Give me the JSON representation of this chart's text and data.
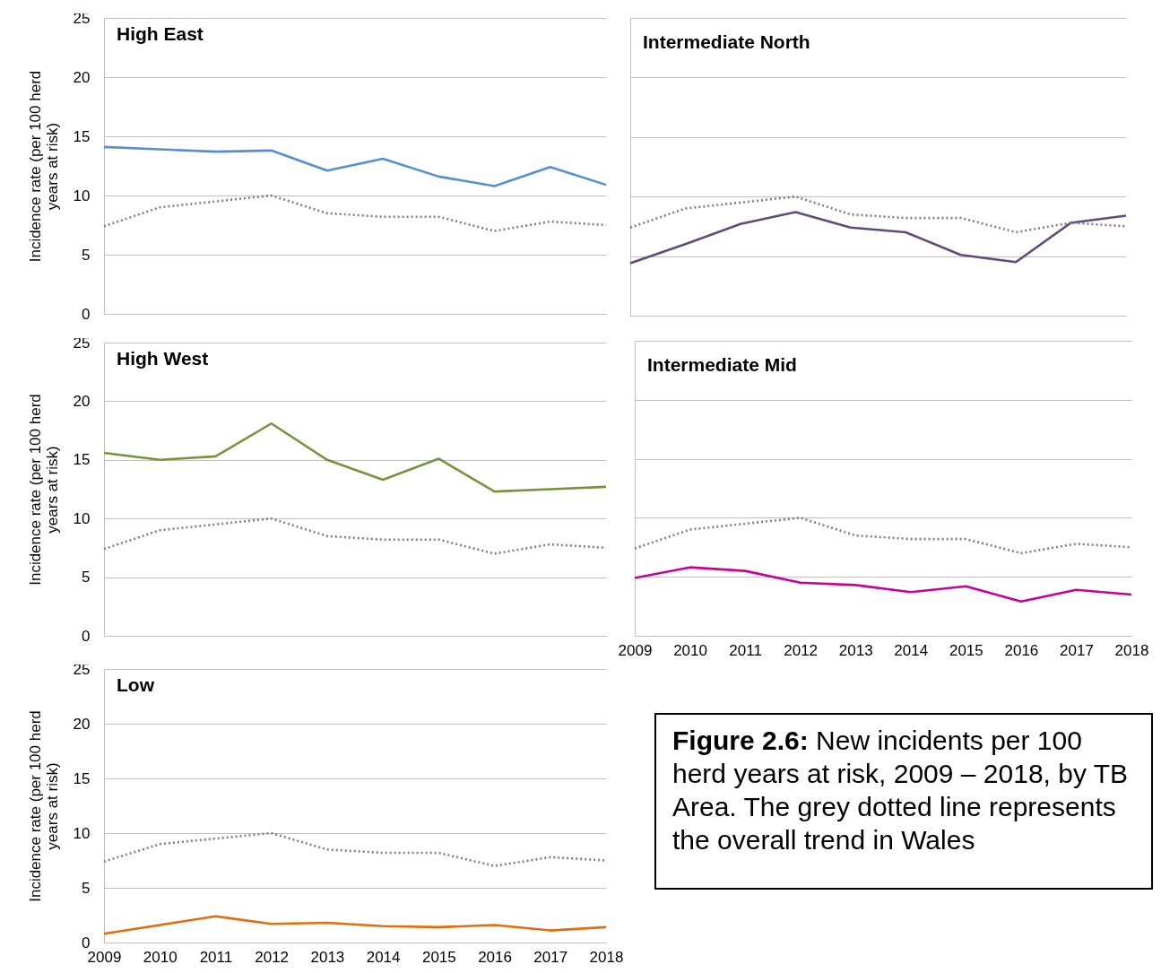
{
  "chart_data": [
    {
      "type": "line",
      "title": "High East",
      "ylabel": "Incidence rate (per 100 herd\nyears at risk)",
      "x": [
        2009,
        2010,
        2011,
        2012,
        2013,
        2014,
        2015,
        2016,
        2017,
        2018
      ],
      "xlim": [
        2009,
        2018
      ],
      "xticks": [
        2009,
        2010,
        2011,
        2012,
        2013,
        2014,
        2015,
        2016,
        2017,
        2018
      ],
      "ylim": [
        0,
        25
      ],
      "yticks": [
        0,
        5,
        10,
        15,
        20,
        25
      ],
      "grid": "y",
      "tick_labels": "y",
      "series": [
        {
          "color": "#558ed5",
          "values": [
            14.1,
            13.9,
            13.7,
            13.8,
            12.1,
            13.1,
            11.6,
            10.8,
            12.4,
            10.9
          ]
        },
        {
          "color": "#7f7f7f",
          "line_style": "dotted",
          "values": [
            7.4,
            9.0,
            9.5,
            10.0,
            8.5,
            8.2,
            8.2,
            7.0,
            7.8,
            7.5
          ]
        }
      ]
    },
    {
      "type": "line",
      "title": "Intermediate North",
      "x": [
        2009,
        2010,
        2011,
        2012,
        2013,
        2014,
        2015,
        2016,
        2017,
        2018
      ],
      "xlim": [
        2009,
        2018
      ],
      "xticks": [
        2009,
        2010,
        2011,
        2012,
        2013,
        2014,
        2015,
        2016,
        2017,
        2018
      ],
      "ylim": [
        0,
        25
      ],
      "yticks": [
        0,
        5,
        10,
        15,
        20,
        25
      ],
      "grid": "y",
      "tick_labels": false,
      "series": [
        {
          "color": "#604a7b",
          "values": [
            4.4,
            6.0,
            7.7,
            8.7,
            7.4,
            7.0,
            5.1,
            4.5,
            7.8,
            8.4
          ]
        },
        {
          "color": "#7f7f7f",
          "line_style": "dotted",
          "values": [
            7.4,
            9.0,
            9.5,
            10.0,
            8.5,
            8.2,
            8.2,
            7.0,
            7.8,
            7.5
          ]
        }
      ]
    },
    {
      "type": "line",
      "title": "High West",
      "ylabel": "Incidence rate (per 100 herd\nyears at risk)",
      "x": [
        2009,
        2010,
        2011,
        2012,
        2013,
        2014,
        2015,
        2016,
        2017,
        2018
      ],
      "xlim": [
        2009,
        2018
      ],
      "xticks": [
        2009,
        2010,
        2011,
        2012,
        2013,
        2014,
        2015,
        2016,
        2017,
        2018
      ],
      "ylim": [
        0,
        25
      ],
      "yticks": [
        0,
        5,
        10,
        15,
        20,
        25
      ],
      "grid": "y",
      "tick_labels": "y",
      "series": [
        {
          "color": "#77933c",
          "values": [
            15.6,
            15.0,
            15.3,
            18.1,
            15.0,
            13.3,
            15.1,
            12.3,
            12.5,
            12.7
          ]
        },
        {
          "color": "#7f7f7f",
          "line_style": "dotted",
          "values": [
            7.4,
            9.0,
            9.5,
            10.0,
            8.5,
            8.2,
            8.2,
            7.0,
            7.8,
            7.5
          ]
        }
      ]
    },
    {
      "type": "line",
      "title": "Intermediate  Mid",
      "x": [
        2009,
        2010,
        2011,
        2012,
        2013,
        2014,
        2015,
        2016,
        2017,
        2018
      ],
      "xlim": [
        2009,
        2018
      ],
      "xticks": [
        2009,
        2010,
        2011,
        2012,
        2013,
        2014,
        2015,
        2016,
        2017,
        2018
      ],
      "ylim": [
        0,
        25
      ],
      "yticks": [
        0,
        5,
        10,
        15,
        20,
        25
      ],
      "grid": "y",
      "tick_labels": "x",
      "series": [
        {
          "color": "#cc0099",
          "values": [
            4.9,
            5.8,
            5.5,
            4.5,
            4.3,
            3.7,
            4.2,
            2.9,
            3.9,
            3.5
          ]
        },
        {
          "color": "#7f7f7f",
          "line_style": "dotted",
          "values": [
            7.4,
            9.0,
            9.5,
            10.0,
            8.5,
            8.2,
            8.2,
            7.0,
            7.8,
            7.5
          ]
        }
      ]
    },
    {
      "type": "line",
      "title": "Low",
      "ylabel": "Incidence rate (per 100 herd\nyears at risk)",
      "x": [
        2009,
        2010,
        2011,
        2012,
        2013,
        2014,
        2015,
        2016,
        2017,
        2018
      ],
      "xlim": [
        2009,
        2018
      ],
      "xticks": [
        2009,
        2010,
        2011,
        2012,
        2013,
        2014,
        2015,
        2016,
        2017,
        2018
      ],
      "ylim": [
        0,
        25
      ],
      "yticks": [
        0,
        5,
        10,
        15,
        20,
        25
      ],
      "grid": "y",
      "series": [
        {
          "color": "#e46c0a",
          "values": [
            0.8,
            1.6,
            2.4,
            1.7,
            1.8,
            1.5,
            1.4,
            1.6,
            1.1,
            1.4
          ]
        },
        {
          "color": "#7f7f7f",
          "line_style": "dotted",
          "values": [
            7.4,
            9.0,
            9.5,
            10.0,
            8.5,
            8.2,
            8.2,
            7.0,
            7.8,
            7.5
          ]
        }
      ]
    },
    {
      "type": "other",
      "title": "Figure 2.6:",
      "annotations": [
        "New incidents per 100 herd years at risk, 2009 – 2018, by TB Area. The grey dotted line represents the overall trend in Wales"
      ]
    }
  ]
}
